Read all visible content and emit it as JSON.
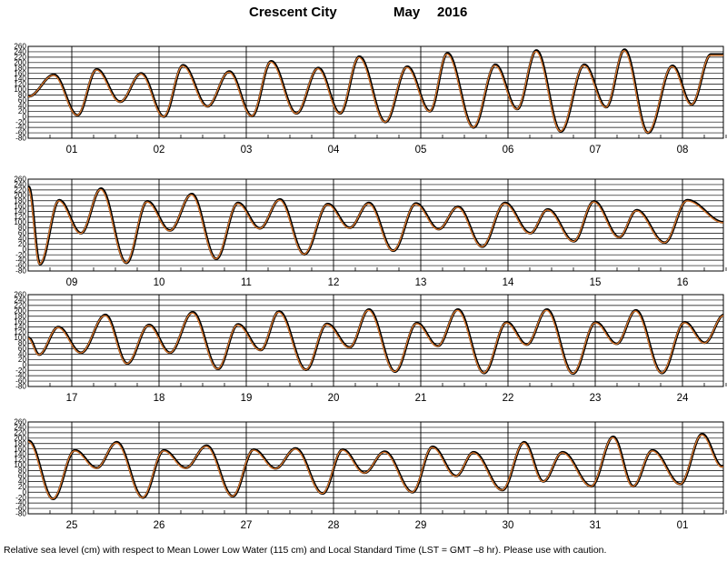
{
  "header": {
    "station": "Crescent City",
    "month": "May",
    "year": "2016"
  },
  "footer": {
    "caption": "Relative sea level (cm) with respect to Mean Lower Low Water (115 cm) and Local Standard Time (LST = GMT –8 hr). Please use with caution."
  },
  "colors": {
    "observed": "#000000",
    "predicted": "#e07a2e",
    "grid": "#000000"
  },
  "chart_data": {
    "type": "line",
    "ylim": [
      -80,
      260
    ],
    "yticks": [
      -80,
      -60,
      -40,
      -20,
      0,
      20,
      40,
      60,
      80,
      100,
      120,
      140,
      160,
      180,
      200,
      220,
      240,
      260
    ],
    "xunit": "day",
    "grid": true,
    "series": [
      {
        "color": "#000000",
        "style": "thick"
      },
      {
        "color": "#e07a2e",
        "style": "thin"
      }
    ],
    "panels": [
      {
        "day_labels": [
          "01",
          "02",
          "03",
          "04",
          "05",
          "06",
          "07",
          "08"
        ],
        "start_day": 1,
        "extrema": [
          [
            0.5,
            75
          ],
          [
            0.79,
            155
          ],
          [
            1.06,
            5
          ],
          [
            1.28,
            175
          ],
          [
            1.55,
            55
          ],
          [
            1.79,
            160
          ],
          [
            2.05,
            0
          ],
          [
            2.27,
            190
          ],
          [
            2.55,
            38
          ],
          [
            2.8,
            167
          ],
          [
            3.06,
            2
          ],
          [
            3.28,
            205
          ],
          [
            3.57,
            12
          ],
          [
            3.82,
            180
          ],
          [
            4.07,
            12
          ],
          [
            4.29,
            222
          ],
          [
            4.59,
            -20
          ],
          [
            4.84,
            185
          ],
          [
            5.1,
            20
          ],
          [
            5.3,
            235
          ],
          [
            5.6,
            -40
          ],
          [
            5.85,
            192
          ],
          [
            6.1,
            28
          ],
          [
            6.32,
            245
          ],
          [
            6.6,
            -55
          ],
          [
            6.87,
            192
          ],
          [
            7.12,
            35
          ],
          [
            7.33,
            248
          ],
          [
            7.6,
            -60
          ],
          [
            7.88,
            188
          ],
          [
            8.1,
            45
          ],
          [
            8.32,
            230
          ]
        ]
      },
      {
        "day_labels": [
          "09",
          "10",
          "11",
          "12",
          "13",
          "14",
          "15",
          "16"
        ],
        "start_day": 9,
        "extrema": [
          [
            8.5,
            232
          ],
          [
            8.63,
            -55
          ],
          [
            8.85,
            182
          ],
          [
            9.1,
            60
          ],
          [
            9.33,
            225
          ],
          [
            9.62,
            -50
          ],
          [
            9.86,
            178
          ],
          [
            10.12,
            70
          ],
          [
            10.37,
            205
          ],
          [
            10.65,
            -35
          ],
          [
            10.9,
            172
          ],
          [
            11.15,
            78
          ],
          [
            11.38,
            185
          ],
          [
            11.66,
            -18
          ],
          [
            11.93,
            168
          ],
          [
            12.18,
            80
          ],
          [
            12.4,
            172
          ],
          [
            12.68,
            -5
          ],
          [
            12.94,
            170
          ],
          [
            13.2,
            75
          ],
          [
            13.42,
            158
          ],
          [
            13.7,
            10
          ],
          [
            13.96,
            172
          ],
          [
            14.25,
            60
          ],
          [
            14.45,
            148
          ],
          [
            14.75,
            30
          ],
          [
            14.98,
            178
          ],
          [
            15.27,
            45
          ],
          [
            15.47,
            145
          ],
          [
            15.79,
            25
          ],
          [
            16.05,
            182
          ],
          [
            16.47,
            100
          ]
        ]
      },
      {
        "day_labels": [
          "17",
          "18",
          "19",
          "20",
          "21",
          "22",
          "23",
          "24"
        ],
        "start_day": 17,
        "extrema": [
          [
            16.5,
            100
          ],
          [
            16.62,
            38
          ],
          [
            16.84,
            140
          ],
          [
            17.1,
            45
          ],
          [
            17.38,
            185
          ],
          [
            17.63,
            5
          ],
          [
            17.88,
            148
          ],
          [
            18.12,
            45
          ],
          [
            18.38,
            195
          ],
          [
            18.67,
            -15
          ],
          [
            18.9,
            150
          ],
          [
            19.16,
            55
          ],
          [
            19.37,
            198
          ],
          [
            19.68,
            -18
          ],
          [
            19.92,
            152
          ],
          [
            20.18,
            65
          ],
          [
            20.4,
            205
          ],
          [
            20.7,
            -25
          ],
          [
            20.95,
            155
          ],
          [
            21.19,
            70
          ],
          [
            21.42,
            205
          ],
          [
            21.72,
            -30
          ],
          [
            21.98,
            158
          ],
          [
            22.21,
            75
          ],
          [
            22.44,
            205
          ],
          [
            22.74,
            -32
          ],
          [
            23.0,
            158
          ],
          [
            23.24,
            78
          ],
          [
            23.46,
            202
          ],
          [
            23.76,
            -30
          ],
          [
            24.02,
            158
          ],
          [
            24.25,
            82
          ],
          [
            24.47,
            185
          ]
        ]
      },
      {
        "day_labels": [
          "25",
          "26",
          "27",
          "28",
          "29",
          "30",
          "31",
          "01"
        ],
        "start_day": 25,
        "extrema": [
          [
            24.5,
            190
          ],
          [
            24.78,
            -25
          ],
          [
            25.03,
            155
          ],
          [
            25.28,
            90
          ],
          [
            25.51,
            185
          ],
          [
            25.81,
            -20
          ],
          [
            26.05,
            155
          ],
          [
            26.3,
            90
          ],
          [
            26.54,
            172
          ],
          [
            26.84,
            -15
          ],
          [
            27.08,
            158
          ],
          [
            27.33,
            88
          ],
          [
            27.56,
            162
          ],
          [
            27.87,
            -5
          ],
          [
            28.1,
            158
          ],
          [
            28.35,
            72
          ],
          [
            28.58,
            150
          ],
          [
            28.9,
            0
          ],
          [
            29.13,
            168
          ],
          [
            29.4,
            60
          ],
          [
            29.6,
            148
          ],
          [
            29.93,
            8
          ],
          [
            30.18,
            185
          ],
          [
            30.4,
            40
          ],
          [
            30.62,
            148
          ],
          [
            30.95,
            22
          ],
          [
            31.2,
            205
          ],
          [
            31.43,
            22
          ],
          [
            31.65,
            155
          ],
          [
            31.97,
            30
          ],
          [
            32.22,
            215
          ],
          [
            32.45,
            95
          ]
        ]
      }
    ]
  }
}
